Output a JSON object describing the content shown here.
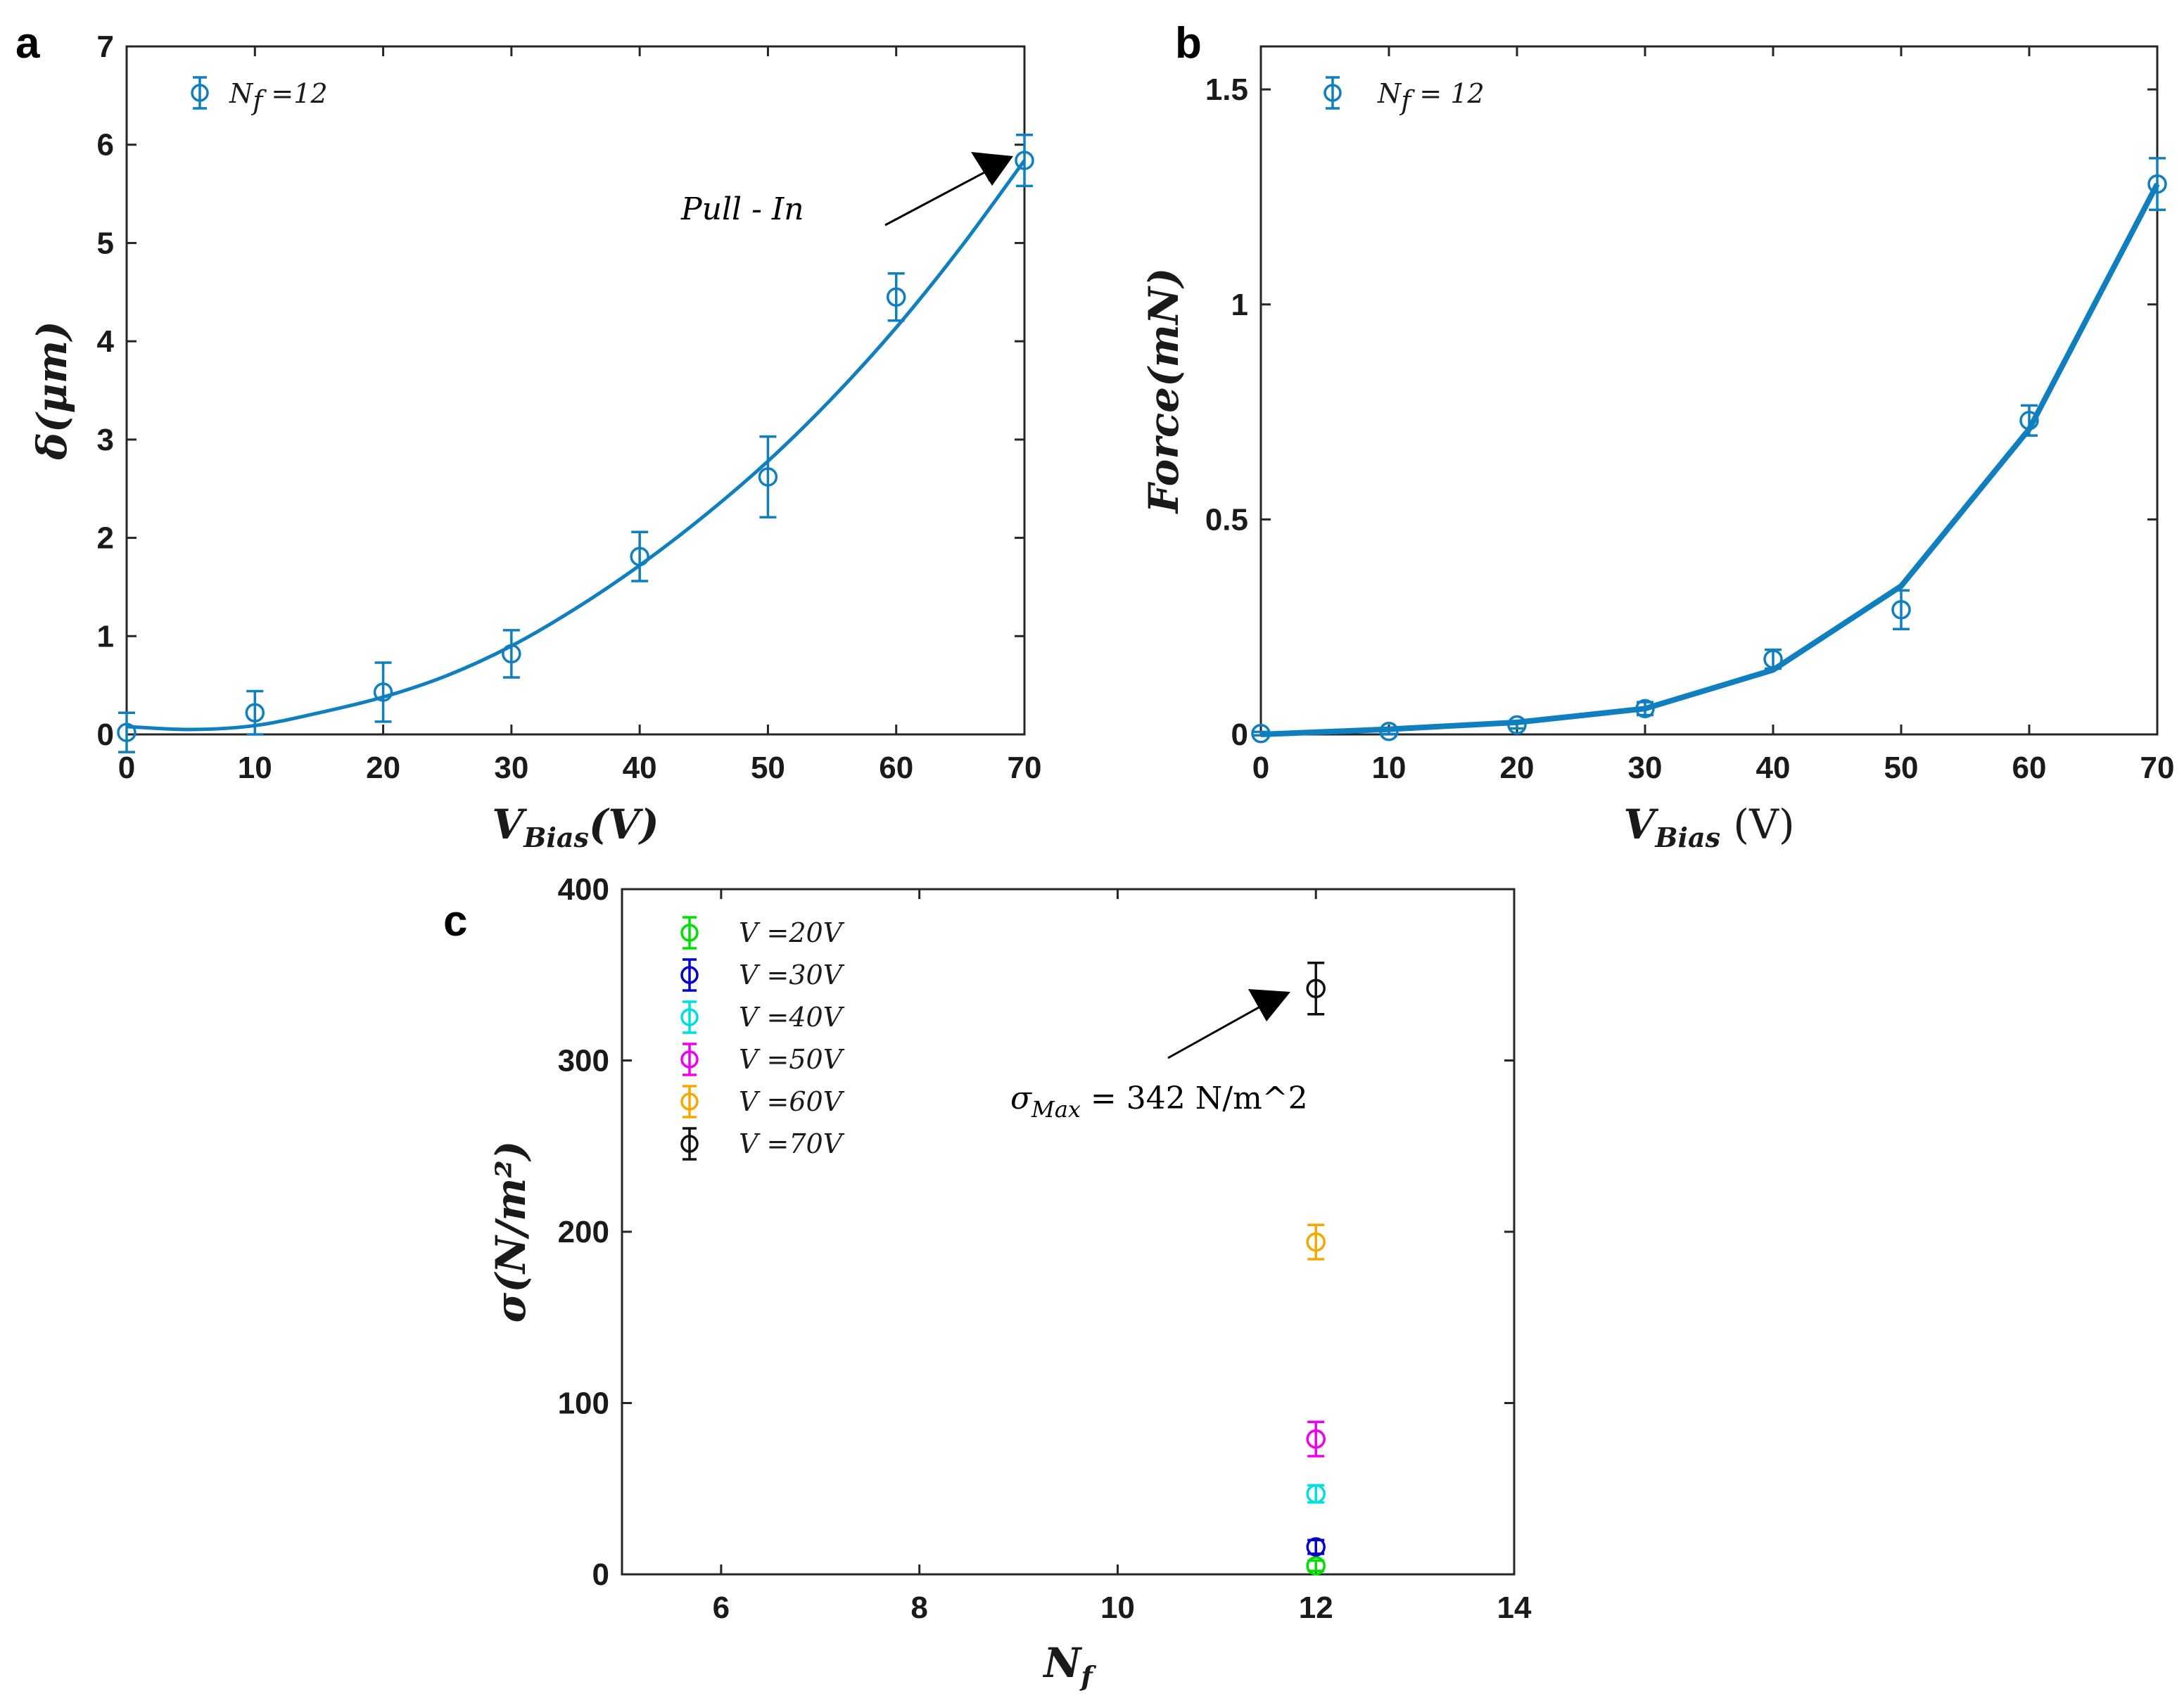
{
  "chart_data": [
    {
      "panel": "a",
      "type": "scatter",
      "xlabel": "V_Bias(V)",
      "xlabel_main": "V",
      "xlabel_sub": "Bias",
      "xlabel_unit": "(V)",
      "ylabel": "δ(μm)",
      "xlim": [
        0,
        70
      ],
      "ylim": [
        0,
        7
      ],
      "xticks": [
        0,
        10,
        20,
        30,
        40,
        50,
        60,
        70
      ],
      "yticks": [
        0,
        1,
        2,
        3,
        4,
        5,
        6,
        7
      ],
      "legend": "N_f =12",
      "legend_main": "N",
      "legend_sub": "f",
      "legend_rest": " =12",
      "color": "#0f7fbf",
      "series": [
        {
          "name": "N_f =12",
          "x": [
            0,
            10,
            20,
            30,
            40,
            50,
            60,
            70
          ],
          "y": [
            0.02,
            0.22,
            0.43,
            0.82,
            1.81,
            2.62,
            4.45,
            5.84
          ],
          "err": [
            0.2,
            0.22,
            0.3,
            0.24,
            0.25,
            0.41,
            0.24,
            0.26
          ]
        }
      ],
      "fit_curve": {
        "x": [
          0,
          5,
          10,
          15,
          20,
          25,
          30,
          35,
          40,
          45,
          50,
          55,
          60,
          65,
          70
        ],
        "y": [
          0.08,
          0.05,
          0.09,
          0.22,
          0.38,
          0.6,
          0.9,
          1.28,
          1.72,
          2.22,
          2.78,
          3.42,
          4.14,
          4.95,
          5.84
        ]
      },
      "annotation": "Pull - In"
    },
    {
      "panel": "b",
      "type": "line",
      "xlabel": "V_Bias (V)",
      "xlabel_main": "V",
      "xlabel_sub": "Bias",
      "xlabel_unit": " (V)",
      "ylabel": "Force(mN)",
      "xlim": [
        0,
        70
      ],
      "ylim": [
        0,
        1.6
      ],
      "xticks": [
        0,
        10,
        20,
        30,
        40,
        50,
        60,
        70
      ],
      "yticks": [
        0,
        0.5,
        1,
        1.5
      ],
      "ytick_labels": [
        "0",
        "0.5",
        "1",
        "1.5"
      ],
      "legend": "N_f = 12",
      "legend_main": "N",
      "legend_sub": "f",
      "legend_rest": " = 12",
      "color": "#0f7fbf",
      "series": [
        {
          "name": "N_f = 12",
          "x": [
            0,
            10,
            20,
            30,
            40,
            50,
            60,
            70
          ],
          "y": [
            0.002,
            0.007,
            0.022,
            0.06,
            0.175,
            0.29,
            0.73,
            1.28
          ],
          "err": [
            0.004,
            0.006,
            0.008,
            0.015,
            0.022,
            0.045,
            0.035,
            0.06
          ]
        }
      ],
      "fit_line": {
        "x": [
          0,
          10,
          20,
          30,
          40,
          50,
          60,
          70
        ],
        "y": [
          0.0,
          0.012,
          0.028,
          0.06,
          0.15,
          0.345,
          0.71,
          1.28
        ]
      }
    },
    {
      "panel": "c",
      "type": "scatter",
      "xlabel": "N_f",
      "xlabel_main": "N",
      "xlabel_sub": "f",
      "ylabel": "σ(N/m²)",
      "xlim": [
        5,
        14
      ],
      "ylim": [
        0,
        400
      ],
      "xticks": [
        6,
        8,
        10,
        12,
        14
      ],
      "yticks": [
        0,
        100,
        200,
        300,
        400
      ],
      "series": [
        {
          "name": "V =20V",
          "label_main": "V",
          "label_rest": " =20V",
          "color": "#00e000",
          "x": [
            12
          ],
          "y": [
            5
          ],
          "err": [
            3
          ]
        },
        {
          "name": "V =30V",
          "label_main": "V",
          "label_rest": " =30V",
          "color": "#0000cc",
          "x": [
            12
          ],
          "y": [
            16
          ],
          "err": [
            4
          ]
        },
        {
          "name": "V =40V",
          "label_main": "V",
          "label_rest": " =40V",
          "color": "#00dede",
          "x": [
            12
          ],
          "y": [
            47
          ],
          "err": [
            5
          ]
        },
        {
          "name": "V =50V",
          "label_main": "V",
          "label_rest": " =50V",
          "color": "#ee00ee",
          "x": [
            12
          ],
          "y": [
            79
          ],
          "err": [
            10
          ]
        },
        {
          "name": "V =60V",
          "label_main": "V",
          "label_rest": " =60V",
          "color": "#f5a800",
          "x": [
            12
          ],
          "y": [
            194
          ],
          "err": [
            10
          ]
        },
        {
          "name": "V =70V",
          "label_main": "V",
          "label_rest": " =70V",
          "color": "#111111",
          "x": [
            12
          ],
          "y": [
            342
          ],
          "err": [
            15
          ]
        }
      ],
      "annotation": "σ_Max = 342 N/m^2",
      "annotation_main": "σ",
      "annotation_sub": "Max",
      "annotation_rest": "  = 342 N/m^2"
    }
  ],
  "panel_letters": [
    "a",
    "b",
    "c"
  ]
}
